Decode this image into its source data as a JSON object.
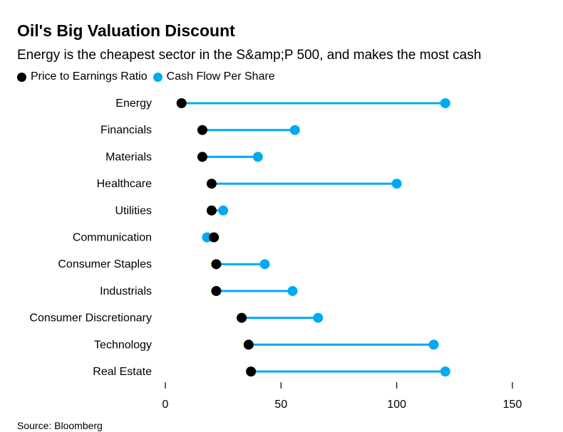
{
  "header": {
    "title": "Oil's Big Valuation Discount",
    "subtitle": "Energy is the cheapest sector in the S&amp;P 500, and makes the most cash"
  },
  "legend": [
    {
      "label": "Price to Earnings Ratio",
      "color": "#000000"
    },
    {
      "label": "Cash Flow Per Share",
      "color": "#00aaf2"
    }
  ],
  "source": "Source: Bloomberg",
  "chart_data": {
    "type": "dumbbell",
    "categories": [
      "Energy",
      "Financials",
      "Materials",
      "Healthcare",
      "Utilities",
      "Communication",
      "Consumer Staples",
      "Industrials",
      "Consumer Discretionary",
      "Technology",
      "Real Estate"
    ],
    "series": [
      {
        "name": "Price to Earnings Ratio",
        "color": "#000000",
        "values": [
          7,
          16,
          16,
          20,
          20,
          21,
          22,
          22,
          33,
          36,
          37
        ]
      },
      {
        "name": "Cash Flow Per Share",
        "color": "#00aaf2",
        "values": [
          121,
          56,
          40,
          100,
          25,
          18,
          43,
          55,
          66,
          116,
          121
        ]
      }
    ],
    "xlim": [
      0,
      150
    ],
    "xticks": [
      0,
      50,
      100,
      150
    ],
    "connector_color": "#00aaf2",
    "grid": false
  }
}
